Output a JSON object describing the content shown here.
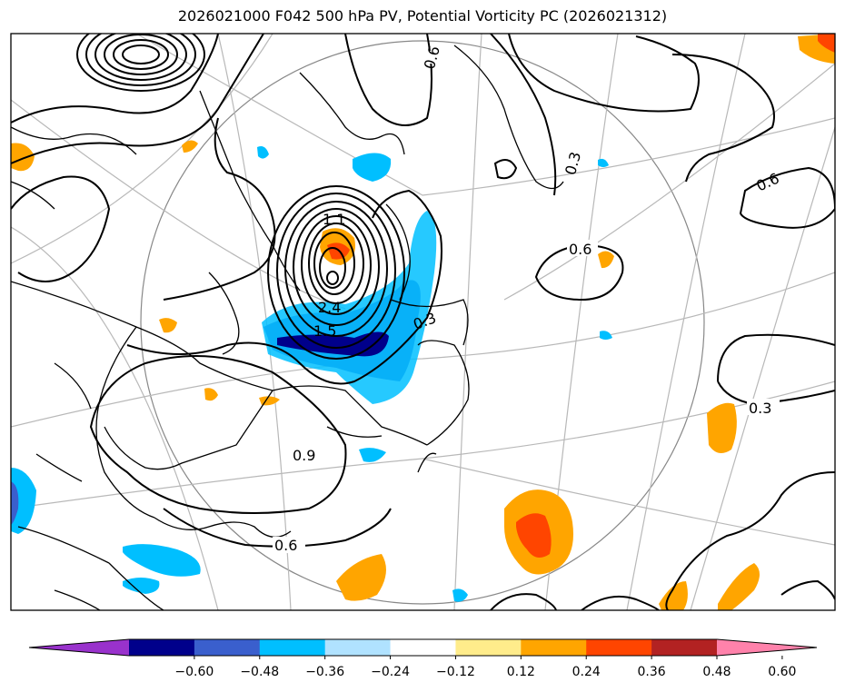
{
  "title": "2026021000 F042 500 hPa PV, Potential Vorticity PC (2026021312)",
  "colorbar": {
    "ticks": [
      "−0.60",
      "−0.48",
      "−0.36",
      "−0.24",
      "−0.12",
      "0.12",
      "0.24",
      "0.36",
      "0.48",
      "0.60"
    ],
    "colors": [
      "#9932cc",
      "#00008b",
      "#3a5fcd",
      "#00bfff",
      "#b0e2ff",
      "#ffffff",
      "#ffec8b",
      "#ffa500",
      "#ff4500",
      "#b22222",
      "#ff82ab"
    ],
    "extend": "both"
  },
  "contour_labels": [
    {
      "id": "label-0-6-top",
      "text": "0.6"
    },
    {
      "id": "label-0-3-top",
      "text": "0.3"
    },
    {
      "id": "label-0-6-right",
      "text": "0.6"
    },
    {
      "id": "label-0-6-center",
      "text": "0.6"
    },
    {
      "id": "label-1-1",
      "text": "1.1"
    },
    {
      "id": "label-1-5",
      "text": "1.5"
    },
    {
      "id": "label-2-4",
      "text": "2.4"
    },
    {
      "id": "label-0-3-mid",
      "text": "0.3"
    },
    {
      "id": "label-0-3-east",
      "text": "0.3"
    },
    {
      "id": "label-0-9",
      "text": "0.9"
    },
    {
      "id": "label-0-6-bottom",
      "text": "0.6"
    }
  ],
  "shading_colors": {
    "strong_negative": "#00008b",
    "negative": "#3a5fcd",
    "weak_negative": "#00bfff",
    "weak_positive": "#ffa500",
    "positive": "#ff4500"
  }
}
